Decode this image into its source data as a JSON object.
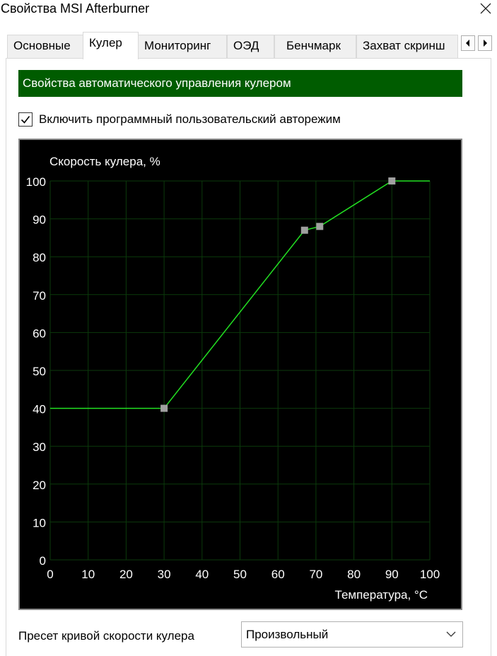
{
  "window": {
    "title": "Свойства MSI Afterburner"
  },
  "tabs": [
    {
      "label": "Основные",
      "active": false
    },
    {
      "label": "Кулер",
      "active": true
    },
    {
      "label": "Мониторинг",
      "active": false
    },
    {
      "label": "ОЭД",
      "active": false
    },
    {
      "label": "Бенчмарк",
      "active": false
    },
    {
      "label": "Захват скринш",
      "active": false
    }
  ],
  "section": {
    "header": "Свойства автоматического управления кулером",
    "header_color": "#005c00"
  },
  "auto_mode": {
    "label": "Включить программный пользовательский авторежим",
    "checked": true
  },
  "chart_data": {
    "type": "line",
    "ylabel": "Скорость кулера, %",
    "xlabel": "Температура, °C",
    "xlim": [
      0,
      100
    ],
    "ylim": [
      0,
      100
    ],
    "xticks": [
      0,
      10,
      20,
      30,
      40,
      50,
      60,
      70,
      80,
      90,
      100
    ],
    "yticks": [
      0,
      10,
      20,
      30,
      40,
      50,
      60,
      70,
      80,
      90,
      100
    ],
    "grid": true,
    "background": "#000000",
    "grid_color": "#0b3a0b",
    "line_color": "#22e022",
    "point_color": "#a0a0a0",
    "series": [
      {
        "x": [
          0,
          30,
          67,
          71,
          90,
          100
        ],
        "y": [
          40,
          40,
          87,
          88,
          100,
          100
        ]
      }
    ],
    "control_points": [
      {
        "x": 30,
        "y": 40
      },
      {
        "x": 67,
        "y": 87
      },
      {
        "x": 71,
        "y": 88
      },
      {
        "x": 90,
        "y": 100
      }
    ]
  },
  "preset": {
    "label": "Пресет кривой скорости кулера",
    "value": "Произвольный"
  },
  "icons": {
    "close": "close-icon",
    "scroll_left": "arrow-left-icon",
    "scroll_right": "arrow-right-icon",
    "check": "checkmark-icon",
    "dropdown": "chevron-down-icon"
  }
}
